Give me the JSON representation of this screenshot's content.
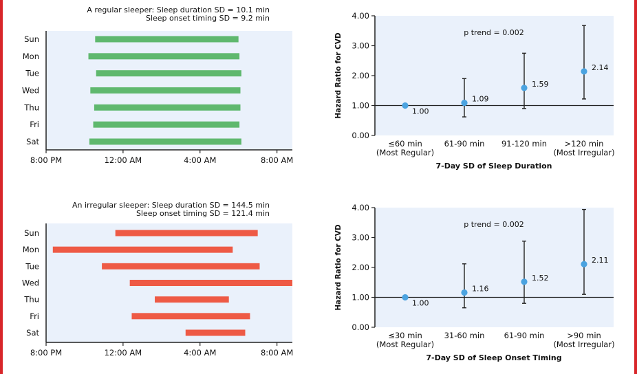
{
  "chart_data": [
    {
      "type": "bar",
      "orientation": "horizontal-range",
      "title_lines": [
        "A regular sleeper: Sleep duration SD = 10.1 min",
        "Sleep onset timing SD = 9.2 min"
      ],
      "categories": [
        "Sun",
        "Mon",
        "Tue",
        "Wed",
        "Thu",
        "Fri",
        "Sat"
      ],
      "xticks": [
        "8:00 PM",
        "12:00 AM",
        "4:00 AM",
        "8:00 AM"
      ],
      "xlim_hours_after_8pm": [
        0,
        12.8
      ],
      "ranges": [
        [
          2.55,
          10.0
        ],
        [
          2.2,
          10.05
        ],
        [
          2.6,
          10.15
        ],
        [
          2.3,
          10.1
        ],
        [
          2.5,
          10.1
        ],
        [
          2.45,
          10.05
        ],
        [
          2.25,
          10.15
        ]
      ],
      "color": "#5fb86e"
    },
    {
      "type": "scatter",
      "subtype": "errorbar",
      "categories": [
        "≤60 min",
        "61-90 min",
        "91-120 min",
        ">120 min"
      ],
      "category_sub": [
        "(Most Regular)",
        "",
        "",
        "(Most Irregular)"
      ],
      "values": [
        1.0,
        1.09,
        1.59,
        2.14
      ],
      "labels": [
        "1.00",
        "1.09",
        "1.59",
        "2.14"
      ],
      "ci_low": [
        1.0,
        0.62,
        0.9,
        1.22
      ],
      "ci_high": [
        1.0,
        1.9,
        2.75,
        3.68
      ],
      "ylim": [
        0,
        4
      ],
      "yticks": [
        "0.00",
        "1.00",
        "2.00",
        "3.00",
        "4.00"
      ],
      "ylabel": "Hazard Ratio for CVD",
      "xlabel": "7-Day SD of Sleep Duration",
      "annotation": "p trend = 0.002",
      "color": "#4ba3e0"
    },
    {
      "type": "bar",
      "orientation": "horizontal-range",
      "title_lines": [
        "An irregular sleeper: Sleep duration SD = 144.5 min",
        "Sleep onset timing SD = 121.4 min"
      ],
      "categories": [
        "Sun",
        "Mon",
        "Tue",
        "Wed",
        "Thu",
        "Fri",
        "Sat"
      ],
      "xticks": [
        "8:00 PM",
        "12:00 AM",
        "4:00 AM",
        "8:00 AM"
      ],
      "xlim_hours_after_8pm": [
        0,
        12.8
      ],
      "ranges": [
        [
          3.6,
          11.0
        ],
        [
          0.35,
          9.7
        ],
        [
          2.9,
          11.1
        ],
        [
          4.35,
          12.8
        ],
        [
          5.65,
          9.5
        ],
        [
          4.45,
          10.6
        ],
        [
          7.25,
          10.35
        ]
      ],
      "color": "#ee5a45"
    },
    {
      "type": "scatter",
      "subtype": "errorbar",
      "categories": [
        "≤30 min",
        "31-60 min",
        "61-90 min",
        ">90 min"
      ],
      "category_sub": [
        "(Most Regular)",
        "",
        "",
        "(Most Irregular)"
      ],
      "values": [
        1.0,
        1.16,
        1.52,
        2.11
      ],
      "labels": [
        "1.00",
        "1.16",
        "1.52",
        "2.11"
      ],
      "ci_low": [
        1.0,
        0.65,
        0.8,
        1.1
      ],
      "ci_high": [
        1.0,
        2.12,
        2.88,
        3.94
      ],
      "ylim": [
        0,
        4
      ],
      "yticks": [
        "0.00",
        "1.00",
        "2.00",
        "3.00",
        "4.00"
      ],
      "ylabel": "Hazard Ratio for CVD",
      "xlabel": "7-Day SD of Sleep Onset Timing",
      "annotation": "p trend = 0.002",
      "color": "#4ba3e0"
    }
  ]
}
